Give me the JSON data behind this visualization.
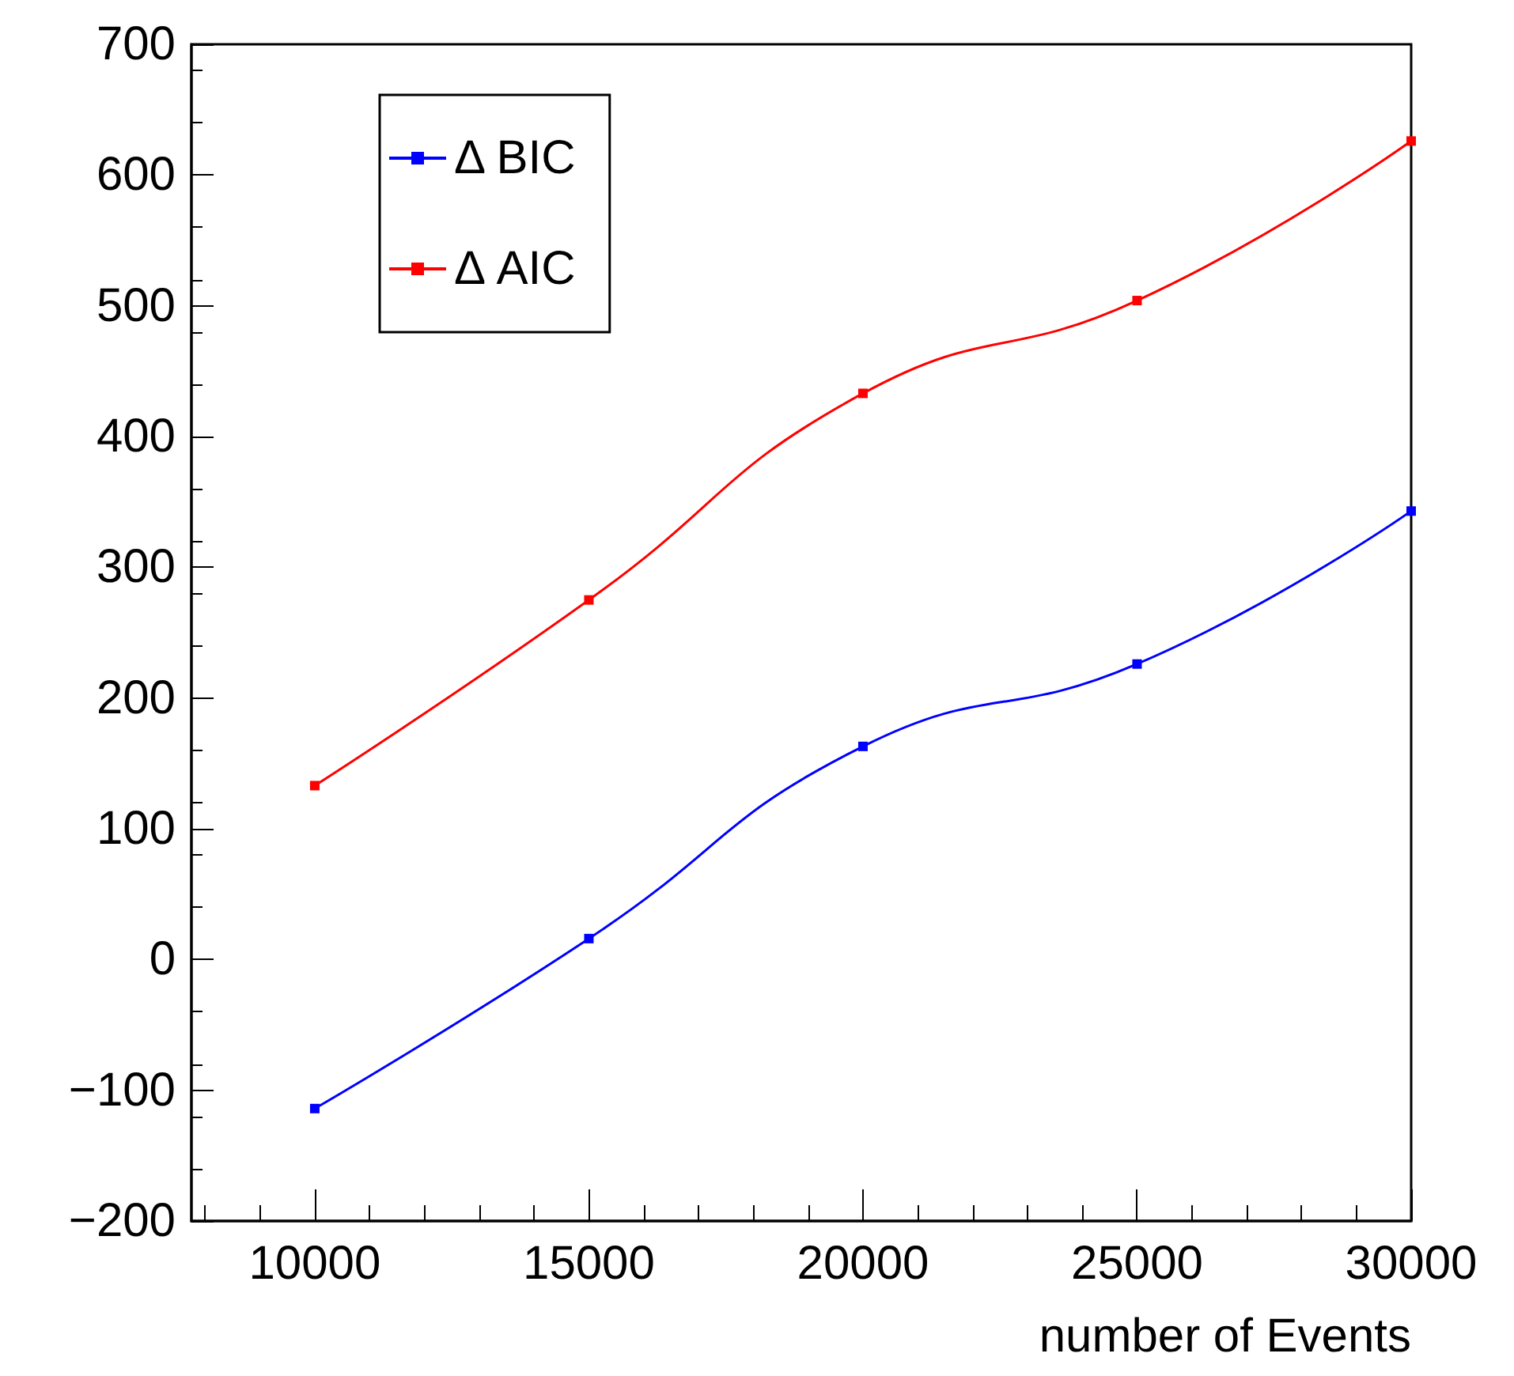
{
  "chart_data": {
    "type": "line",
    "xlabel": "number of Events",
    "x": [
      10000,
      15000,
      20000,
      25000,
      30000
    ],
    "series": [
      {
        "name": "Δ BIC",
        "color": "#0000ff",
        "values": [
          -114,
          16,
          163,
          226,
          343
        ]
      },
      {
        "name": "Δ AIC",
        "color": "#ff0000",
        "values": [
          133,
          275,
          433,
          504,
          626
        ]
      }
    ],
    "xlim": [
      7750,
      30000
    ],
    "xticks": [
      10000,
      15000,
      20000,
      25000,
      30000
    ],
    "ylim": [
      -200,
      700
    ],
    "yticks": [
      -200,
      -100,
      0,
      100,
      200,
      300,
      400,
      500,
      600,
      700
    ],
    "grid": false,
    "legend": "top left",
    "marker": "square",
    "line_style": "solid"
  }
}
